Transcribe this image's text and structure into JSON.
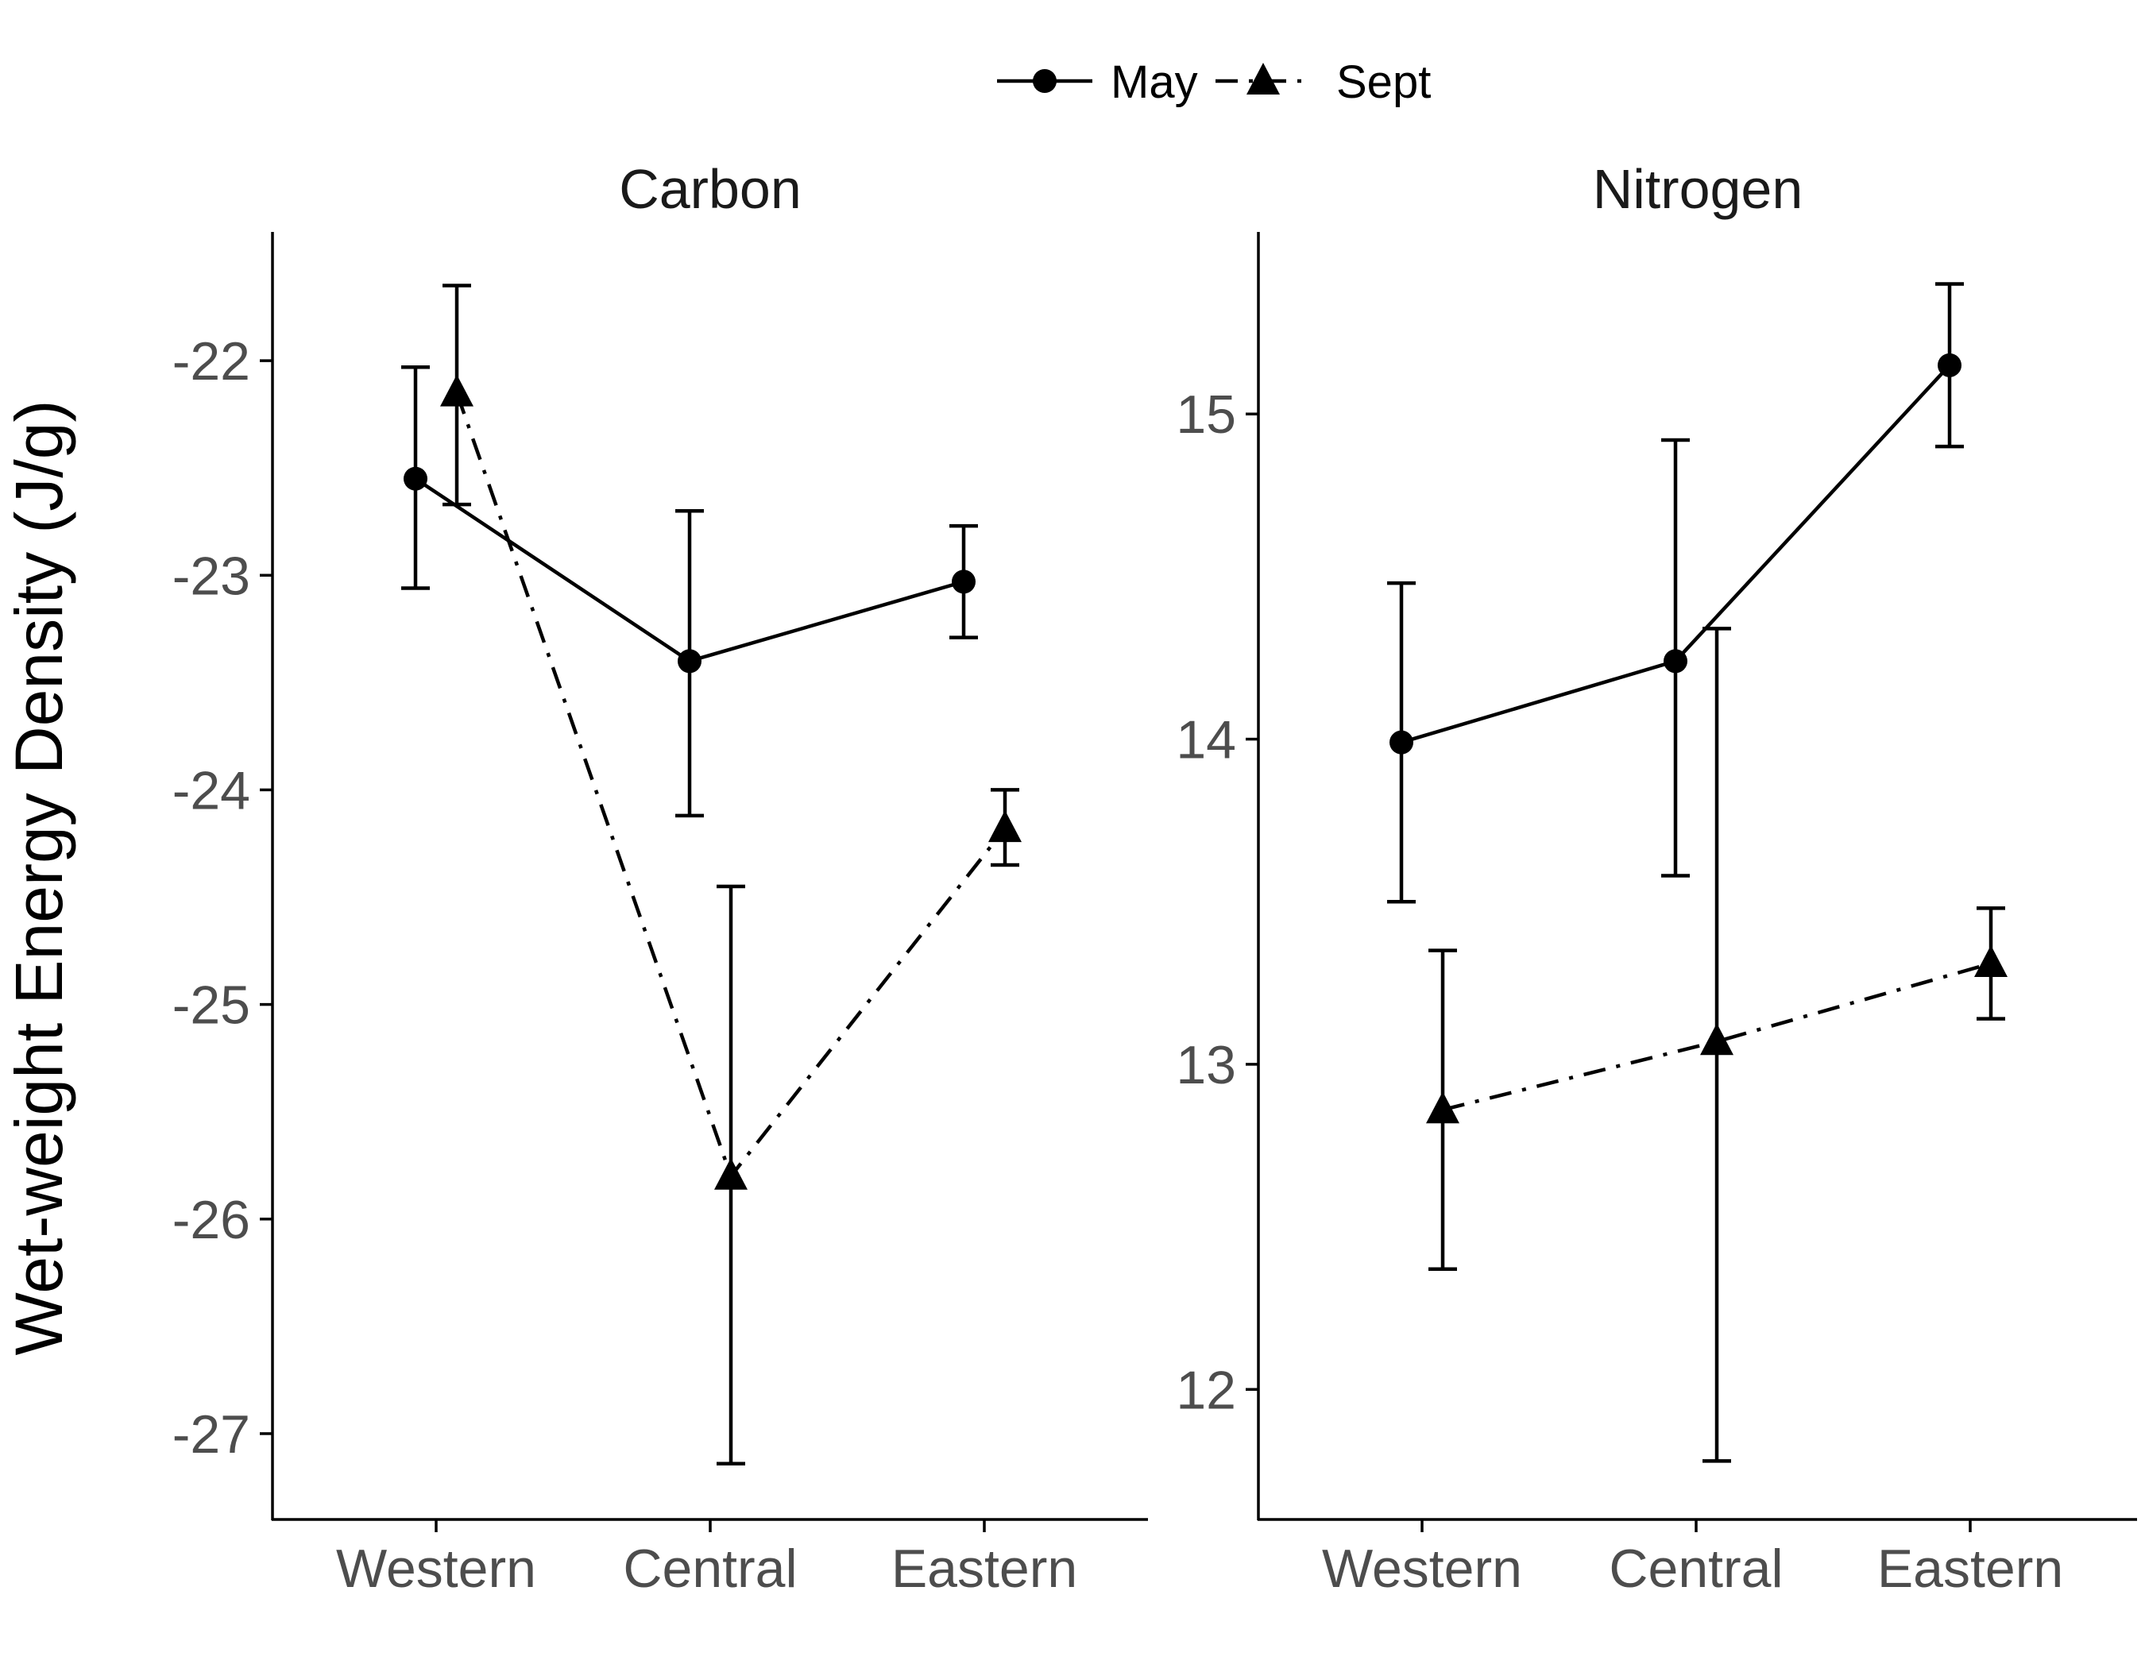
{
  "chart_data": {
    "type": "line",
    "ylabel": "Wet-weight Energy Density (J/g)",
    "legend": {
      "placement": "top",
      "entries": [
        {
          "name": "May",
          "marker": "circle",
          "linestyle": "solid"
        },
        {
          "name": "Sept",
          "marker": "triangle",
          "linestyle": "dotdash"
        }
      ]
    },
    "grid": false,
    "colors": {
      "line": "#000000",
      "axis": "#000000",
      "tick_text": "#4d4d4d"
    },
    "panels": [
      {
        "title": "Carbon",
        "categories": [
          "Western",
          "Central",
          "Eastern"
        ],
        "ylim": [
          -27.4,
          -21.4
        ],
        "yticks": [
          -27,
          -26,
          -25,
          -24,
          -23,
          -22
        ],
        "series": [
          {
            "name": "May",
            "values": [
              -22.55,
              -23.4,
              -23.03
            ],
            "lower": [
              -23.06,
              -24.12,
              -23.29
            ],
            "upper": [
              -22.03,
              -22.7,
              -22.77
            ]
          },
          {
            "name": "Sept",
            "values": [
              -22.15,
              -25.8,
              -24.18
            ],
            "lower": [
              -22.67,
              -27.14,
              -24.35
            ],
            "upper": [
              -21.65,
              -24.45,
              -24.0
            ]
          }
        ]
      },
      {
        "title": "Nitrogen",
        "categories": [
          "Western",
          "Central",
          "Eastern"
        ],
        "ylim": [
          11.6,
          15.56
        ],
        "yticks": [
          12,
          13,
          14,
          15
        ],
        "series": [
          {
            "name": "May",
            "values": [
              13.99,
              14.24,
              15.15
            ],
            "lower": [
              13.5,
              13.58,
              14.9
            ],
            "upper": [
              14.48,
              14.92,
              15.4
            ]
          },
          {
            "name": "Sept",
            "values": [
              12.86,
              13.07,
              13.31
            ],
            "lower": [
              12.37,
              11.78,
              13.14
            ],
            "upper": [
              13.35,
              14.34,
              13.48
            ]
          }
        ]
      }
    ]
  }
}
